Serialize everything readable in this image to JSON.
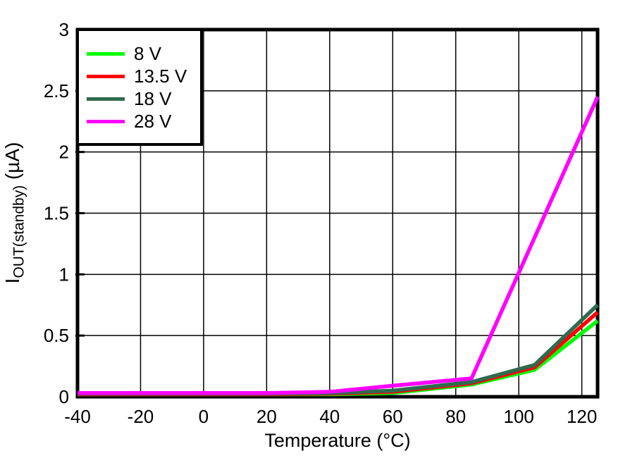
{
  "chart_data": {
    "type": "line",
    "title": "",
    "xlabel": "Temperature (°C)",
    "ylabel_main": "I",
    "ylabel_sub": "OUT(standby)",
    "ylabel_unit": " (µA)",
    "xlim": [
      -40,
      125
    ],
    "ylim": [
      0,
      3
    ],
    "grid": true,
    "legend_position": "top-left",
    "background_color": "#FFFFFF",
    "axis_color": "#000000",
    "gridline_color": "#000000",
    "xticks": [
      -40,
      -20,
      0,
      20,
      40,
      60,
      80,
      100,
      120
    ],
    "xtick_labels": [
      "-40",
      "-20",
      "0",
      "20",
      "40",
      "60",
      "80",
      "100",
      "120"
    ],
    "yticks": [
      0,
      0.5,
      1,
      1.5,
      2,
      2.5,
      3
    ],
    "ytick_labels": [
      "0",
      "0.5",
      "1",
      "1.5",
      "2",
      "2.5",
      "3"
    ],
    "x": [
      -40,
      -20,
      0,
      20,
      40,
      60,
      85,
      105,
      125
    ],
    "series": [
      {
        "name": "8 V",
        "color": "#00FF00",
        "values": [
          0.02,
          0.02,
          0.02,
          0.02,
          0.02,
          0.03,
          0.1,
          0.22,
          0.62
        ]
      },
      {
        "name": "13.5 V",
        "color": "#FF0000",
        "values": [
          0.02,
          0.02,
          0.02,
          0.02,
          0.025,
          0.04,
          0.11,
          0.24,
          0.69
        ]
      },
      {
        "name": "18 V",
        "color": "#2E6B4F",
        "values": [
          0.025,
          0.025,
          0.025,
          0.025,
          0.03,
          0.05,
          0.12,
          0.26,
          0.75
        ]
      },
      {
        "name": "28 V",
        "color": "#FF00FF",
        "values": [
          0.03,
          0.03,
          0.03,
          0.03,
          0.04,
          0.09,
          0.15,
          1.3,
          2.45
        ]
      }
    ]
  }
}
